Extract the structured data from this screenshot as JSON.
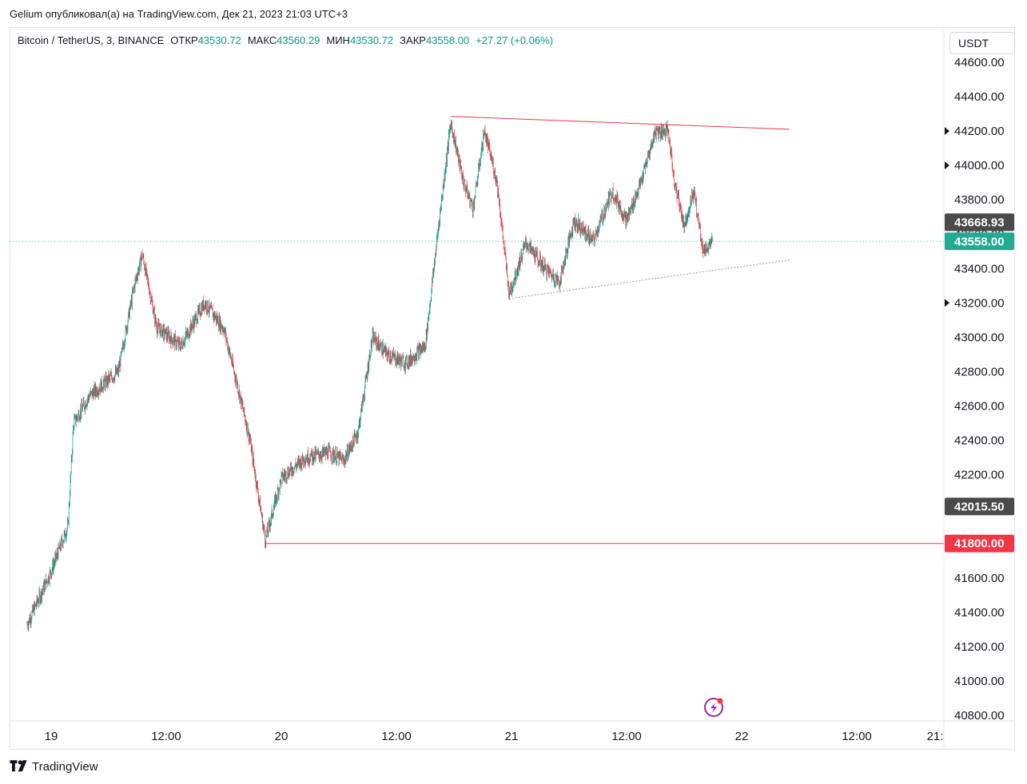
{
  "header": {
    "publisher_line": "Gelium опубликовал(а) на TradingView.com, Дек 21, 2023 21:03 UTC+3"
  },
  "legend": {
    "symbol": "Bitcoin / TetherUS, 3, BINANCE",
    "open_label": "ОТКР",
    "open_value": "43530.72",
    "high_label": "МАКС",
    "high_value": "43560.29",
    "low_label": "МИН",
    "low_value": "43530.72",
    "close_label": "ЗАКР",
    "close_value": "43558.00",
    "change": "+27.27 (+0.06%)"
  },
  "price_axis": {
    "unit": "USDT",
    "ticks": [
      "44600.00",
      "44400.00",
      "44200.00",
      "44000.00",
      "43800.00",
      "43600.00",
      "43400.00",
      "43200.00",
      "43000.00",
      "42800.00",
      "42600.00",
      "42400.00",
      "42200.00",
      "42000.00",
      "41800.00",
      "41600.00",
      "41400.00",
      "41200.00",
      "41000.00",
      "40800.00"
    ]
  },
  "time_axis": {
    "ticks": [
      "19",
      "12:00",
      "20",
      "12:00",
      "21",
      "12:00",
      "22",
      "12:00",
      "21:"
    ]
  },
  "price_tags": [
    {
      "label": "43668.93",
      "price": 43668.93,
      "color": "#4a4a4a"
    },
    {
      "label": "43558.00",
      "price": 43558.0,
      "color": "#22ab94"
    },
    {
      "label": "42015.50",
      "price": 42015.5,
      "color": "#4a4a4a"
    },
    {
      "label": "41800.00",
      "price": 41800.0,
      "color": "#f23645"
    }
  ],
  "colors": {
    "up": "#089981",
    "down": "#f23645",
    "trend_red": "#f23645",
    "support_gray": "#9598a1",
    "last_price_line": "#22ab94"
  },
  "chart_data": {
    "type": "candlestick",
    "title": "Bitcoin / TetherUS, 3, BINANCE",
    "xlabel": "",
    "ylabel": "",
    "ylim": [
      40800,
      44600
    ],
    "x_range_days": [
      "2023-12-18T21:00",
      "2023-12-22T21:00"
    ],
    "last_price": 43558.0,
    "price_path": [
      [
        "2023-12-18T21:30",
        41330
      ],
      [
        "2023-12-19T00:00",
        41640
      ],
      [
        "2023-12-19T01:45",
        41900
      ],
      [
        "2023-12-19T02:20",
        42500
      ],
      [
        "2023-12-19T04:00",
        42660
      ],
      [
        "2023-12-19T07:00",
        42800
      ],
      [
        "2023-12-19T08:40",
        43300
      ],
      [
        "2023-12-19T09:30",
        43480
      ],
      [
        "2023-12-19T11:00",
        43060
      ],
      [
        "2023-12-19T13:30",
        42950
      ],
      [
        "2023-12-19T16:00",
        43200
      ],
      [
        "2023-12-19T18:00",
        43050
      ],
      [
        "2023-12-19T19:30",
        42700
      ],
      [
        "2023-12-19T20:40",
        42420
      ],
      [
        "2023-12-19T22:20",
        41820
      ],
      [
        "2023-12-20T00:00",
        42180
      ],
      [
        "2023-12-20T02:30",
        42300
      ],
      [
        "2023-12-20T05:00",
        42330
      ],
      [
        "2023-12-20T06:30",
        42280
      ],
      [
        "2023-12-20T08:00",
        42450
      ],
      [
        "2023-12-20T09:30",
        43000
      ],
      [
        "2023-12-20T11:00",
        42900
      ],
      [
        "2023-12-20T13:00",
        42850
      ],
      [
        "2023-12-20T15:00",
        42950
      ],
      [
        "2023-12-20T16:30",
        43700
      ],
      [
        "2023-12-20T17:40",
        44250
      ],
      [
        "2023-12-20T19:00",
        43900
      ],
      [
        "2023-12-20T20:00",
        43750
      ],
      [
        "2023-12-20T21:10",
        44200
      ],
      [
        "2023-12-20T22:30",
        43900
      ],
      [
        "2023-12-20T23:45",
        43250
      ],
      [
        "2023-12-21T01:30",
        43550
      ],
      [
        "2023-12-21T03:30",
        43400
      ],
      [
        "2023-12-21T05:00",
        43320
      ],
      [
        "2023-12-21T06:30",
        43680
      ],
      [
        "2023-12-21T08:30",
        43560
      ],
      [
        "2023-12-21T10:30",
        43850
      ],
      [
        "2023-12-21T12:00",
        43680
      ],
      [
        "2023-12-21T13:30",
        43900
      ],
      [
        "2023-12-21T15:00",
        44200
      ],
      [
        "2023-12-21T16:20",
        44200
      ],
      [
        "2023-12-21T17:00",
        43900
      ],
      [
        "2023-12-21T18:00",
        43650
      ],
      [
        "2023-12-21T19:00",
        43850
      ],
      [
        "2023-12-21T20:00",
        43500
      ],
      [
        "2023-12-21T21:00",
        43558
      ]
    ],
    "drawings": [
      {
        "name": "resistance-trendline",
        "style": "solid",
        "color": "#f23645",
        "from": [
          "2023-12-20T17:40",
          44285
        ],
        "to": [
          "2023-12-22T05:00",
          44210
        ]
      },
      {
        "name": "support-trendline",
        "style": "dotted",
        "color": "#9598a1",
        "from": [
          "2023-12-20T23:45",
          43225
        ],
        "to": [
          "2023-12-22T05:00",
          43450
        ]
      },
      {
        "name": "horizontal-level-41800",
        "style": "solid",
        "color": "#f23645",
        "from": [
          "2023-12-19T22:20",
          41800
        ],
        "to": [
          "end",
          41800
        ]
      }
    ]
  }
}
